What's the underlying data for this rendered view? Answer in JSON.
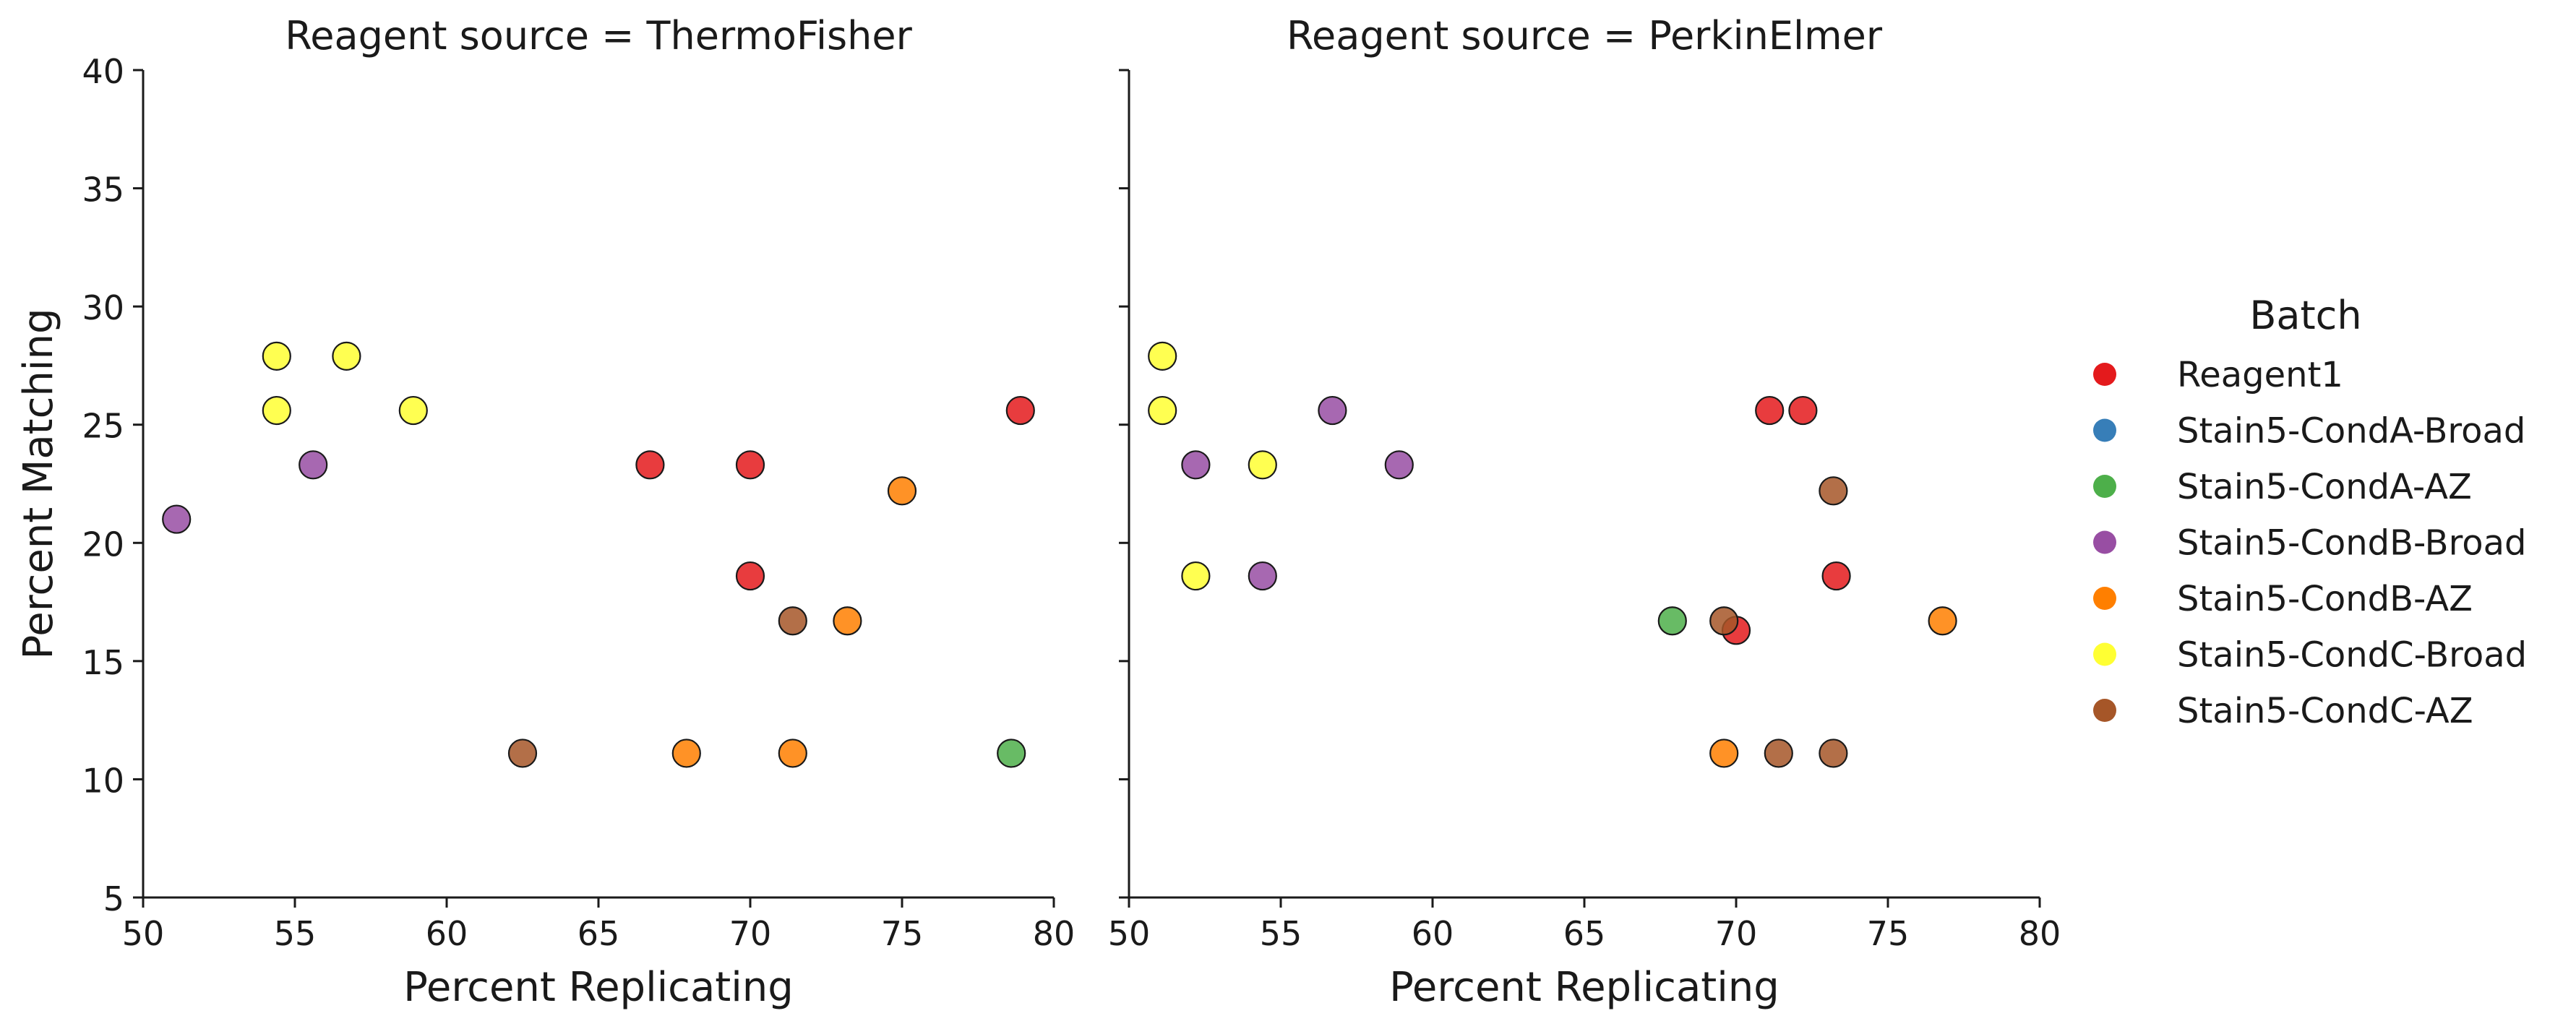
{
  "chart_data": {
    "type": "scatter",
    "xlabel": "Percent Replicating",
    "ylabel": "Percent Matching",
    "xlim": [
      50,
      80
    ],
    "ylim": [
      5,
      40
    ],
    "xticks": [
      50,
      55,
      60,
      65,
      70,
      75,
      80
    ],
    "yticks": [
      5,
      10,
      15,
      20,
      25,
      30,
      35,
      40
    ],
    "grid": false,
    "legend": {
      "title": "Batch",
      "placement": "right",
      "entries": [
        {
          "name": "Reagent1",
          "color": "#e41a1c"
        },
        {
          "name": "Stain5-CondA-Broad",
          "color": "#377eb8"
        },
        {
          "name": "Stain5-CondA-AZ",
          "color": "#4daf4a"
        },
        {
          "name": "Stain5-CondB-Broad",
          "color": "#984ea3"
        },
        {
          "name": "Stain5-CondB-AZ",
          "color": "#ff7f00"
        },
        {
          "name": "Stain5-CondC-Broad",
          "color": "#ffff33"
        },
        {
          "name": "Stain5-CondC-AZ",
          "color": "#a65628"
        }
      ]
    },
    "panels": [
      {
        "title": "Reagent source = ThermoFisher",
        "points": [
          {
            "batch": "Stain5-CondB-Broad",
            "x": 51.1,
            "y": 21.0
          },
          {
            "batch": "Stain5-CondB-Broad",
            "x": 55.6,
            "y": 23.3
          },
          {
            "batch": "Stain5-CondC-Broad",
            "x": 54.4,
            "y": 27.9
          },
          {
            "batch": "Stain5-CondC-Broad",
            "x": 56.7,
            "y": 27.9
          },
          {
            "batch": "Stain5-CondC-Broad",
            "x": 54.4,
            "y": 25.6
          },
          {
            "batch": "Stain5-CondC-Broad",
            "x": 58.9,
            "y": 25.6
          },
          {
            "batch": "Reagent1",
            "x": 66.7,
            "y": 23.3
          },
          {
            "batch": "Reagent1",
            "x": 70.0,
            "y": 23.3
          },
          {
            "batch": "Reagent1",
            "x": 70.0,
            "y": 18.6
          },
          {
            "batch": "Reagent1",
            "x": 78.9,
            "y": 25.6
          },
          {
            "batch": "Stain5-CondC-AZ",
            "x": 62.5,
            "y": 11.1
          },
          {
            "batch": "Stain5-CondB-AZ",
            "x": 67.9,
            "y": 11.1
          },
          {
            "batch": "Stain5-CondB-AZ",
            "x": 71.4,
            "y": 11.1
          },
          {
            "batch": "Stain5-CondC-AZ",
            "x": 71.4,
            "y": 16.7
          },
          {
            "batch": "Stain5-CondB-AZ",
            "x": 73.2,
            "y": 16.7
          },
          {
            "batch": "Stain5-CondB-AZ",
            "x": 75.0,
            "y": 22.2
          },
          {
            "batch": "Stain5-CondA-AZ",
            "x": 78.6,
            "y": 11.1
          }
        ]
      },
      {
        "title": "Reagent source = PerkinElmer",
        "points": [
          {
            "batch": "Stain5-CondC-Broad",
            "x": 51.1,
            "y": 27.9
          },
          {
            "batch": "Stain5-CondC-Broad",
            "x": 51.1,
            "y": 25.6
          },
          {
            "batch": "Stain5-CondB-Broad",
            "x": 52.2,
            "y": 23.3
          },
          {
            "batch": "Stain5-CondC-Broad",
            "x": 52.2,
            "y": 18.6
          },
          {
            "batch": "Stain5-CondC-Broad",
            "x": 54.4,
            "y": 23.3
          },
          {
            "batch": "Stain5-CondB-Broad",
            "x": 54.4,
            "y": 18.6
          },
          {
            "batch": "Stain5-CondB-Broad",
            "x": 56.7,
            "y": 25.6
          },
          {
            "batch": "Stain5-CondB-Broad",
            "x": 58.9,
            "y": 23.3
          },
          {
            "batch": "Reagent1",
            "x": 71.1,
            "y": 25.6
          },
          {
            "batch": "Reagent1",
            "x": 72.2,
            "y": 25.6
          },
          {
            "batch": "Stain5-CondC-AZ",
            "x": 73.2,
            "y": 22.2
          },
          {
            "batch": "Reagent1",
            "x": 73.3,
            "y": 18.6
          },
          {
            "batch": "Stain5-CondA-AZ",
            "x": 67.9,
            "y": 16.7
          },
          {
            "batch": "Reagent1",
            "x": 70.0,
            "y": 16.3
          },
          {
            "batch": "Stain5-CondC-AZ",
            "x": 69.6,
            "y": 16.7
          },
          {
            "batch": "Stain5-CondB-AZ",
            "x": 76.8,
            "y": 16.7
          },
          {
            "batch": "Stain5-CondB-AZ",
            "x": 69.6,
            "y": 11.1
          },
          {
            "batch": "Stain5-CondC-AZ",
            "x": 71.4,
            "y": 11.1
          },
          {
            "batch": "Stain5-CondC-AZ",
            "x": 73.2,
            "y": 11.1
          }
        ]
      }
    ]
  }
}
